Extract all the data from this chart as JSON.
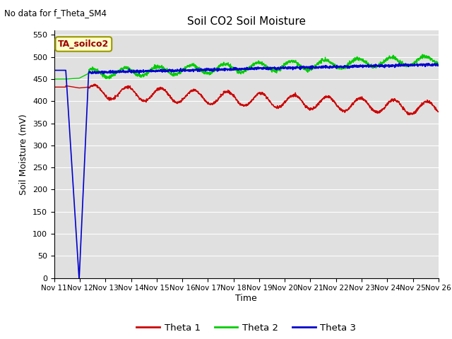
{
  "title": "Soil CO2 Soil Moisture",
  "no_data_text": "No data for f_Theta_SM4",
  "ylabel": "Soil Moisture (mV)",
  "xlabel": "Time",
  "annotation_text": "TA_soilco2",
  "ylim": [
    0,
    560
  ],
  "yticks": [
    0,
    50,
    100,
    150,
    200,
    250,
    300,
    350,
    400,
    450,
    500,
    550
  ],
  "xtick_labels": [
    "Nov 11",
    "Nov 12",
    "Nov 13",
    "Nov 14",
    "Nov 15",
    "Nov 16",
    "Nov 17",
    "Nov 18",
    "Nov 19",
    "Nov 20",
    "Nov 21",
    "Nov 22",
    "Nov 23",
    "Nov 24",
    "Nov 25",
    "Nov 26"
  ],
  "colors": {
    "theta1": "#cc0000",
    "theta2": "#00cc00",
    "theta3": "#0000cc",
    "bg_plot": "#e0e0e0",
    "bg_fig": "#ffffff",
    "annotation_bg": "#ffffcc",
    "annotation_border": "#999900",
    "grid": "#ffffff"
  },
  "legend": [
    "Theta 1",
    "Theta 2",
    "Theta 3"
  ]
}
